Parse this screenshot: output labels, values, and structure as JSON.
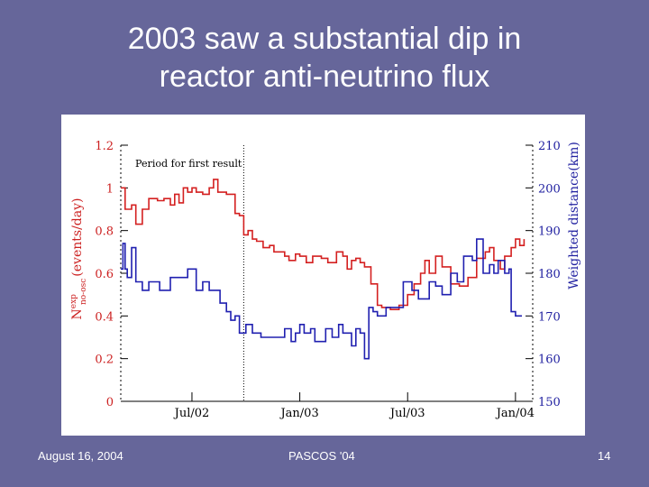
{
  "slide": {
    "title_line1": "2003 saw a substantial dip in",
    "title_line2": "reactor anti-neutrino flux",
    "footer_left": "August 16, 2004",
    "footer_center": "PASCOS '04",
    "footer_right": "14"
  },
  "colors": {
    "background": "#66669a",
    "red_series": "#d42020",
    "blue_series": "#2020b0"
  },
  "chart_data": {
    "type": "line",
    "title": "",
    "annotation": "Period for first result",
    "ylabel_left": "N exp no-osc (events/day)",
    "ylabel_left_parts": {
      "main": "N",
      "sup": "exp",
      "sub": "no-osc",
      "unit": "(events/day)"
    },
    "ylabel_right": "Weighted distance(km)",
    "xlabel": "",
    "xlim": [
      2002.17,
      2004.08
    ],
    "ylim_left": [
      0,
      1.2
    ],
    "ylim_right": [
      150,
      210
    ],
    "x_ticks": [
      {
        "x": 2002.5,
        "label": "Jul/02"
      },
      {
        "x": 2003.0,
        "label": "Jan/03"
      },
      {
        "x": 2003.5,
        "label": "Jul/03"
      },
      {
        "x": 2004.0,
        "label": "Jan/04"
      }
    ],
    "y_ticks_left": [
      "0",
      "0.2",
      "0.4",
      "0.6",
      "0.8",
      "1",
      "1.2"
    ],
    "y_tick_values_left": [
      0,
      0.2,
      0.4,
      0.6,
      0.8,
      1.0,
      1.2
    ],
    "y_ticks_right": [
      "150",
      "160",
      "170",
      "180",
      "190",
      "200",
      "210"
    ],
    "y_tick_values_right": [
      150,
      160,
      170,
      180,
      190,
      200,
      210
    ],
    "vertical_marker_x": 2002.74,
    "series": [
      {
        "axis": "left",
        "color": "#d42020",
        "x": [
          2002.17,
          2002.19,
          2002.22,
          2002.24,
          2002.27,
          2002.3,
          2002.34,
          2002.37,
          2002.4,
          2002.42,
          2002.44,
          2002.46,
          2002.48,
          2002.5,
          2002.52,
          2002.55,
          2002.58,
          2002.6,
          2002.62,
          2002.66,
          2002.7,
          2002.72,
          2002.74,
          2002.76,
          2002.78,
          2002.8,
          2002.83,
          2002.86,
          2002.88,
          2002.9,
          2002.93,
          2002.95,
          2002.98,
          2003.0,
          2003.03,
          2003.06,
          2003.1,
          2003.13,
          2003.17,
          2003.2,
          2003.22,
          2003.24,
          2003.26,
          2003.28,
          2003.3,
          2003.33,
          2003.36,
          2003.38,
          2003.42,
          2003.46,
          2003.5,
          2003.53,
          2003.56,
          2003.58,
          2003.6,
          2003.63,
          2003.66,
          2003.7,
          2003.74,
          2003.78,
          2003.82,
          2003.86,
          2003.88,
          2003.9,
          2003.93,
          2003.95,
          2003.98,
          2004.0,
          2004.02,
          2004.04
        ],
        "y": [
          1.0,
          0.9,
          0.92,
          0.83,
          0.9,
          0.95,
          0.94,
          0.95,
          0.92,
          0.97,
          0.93,
          1.0,
          0.98,
          1.0,
          0.98,
          0.97,
          1.0,
          1.04,
          0.98,
          0.97,
          0.88,
          0.87,
          0.78,
          0.8,
          0.76,
          0.75,
          0.72,
          0.73,
          0.7,
          0.7,
          0.68,
          0.66,
          0.69,
          0.68,
          0.65,
          0.68,
          0.67,
          0.65,
          0.7,
          0.68,
          0.62,
          0.66,
          0.67,
          0.65,
          0.63,
          0.55,
          0.45,
          0.44,
          0.43,
          0.45,
          0.5,
          0.55,
          0.6,
          0.66,
          0.6,
          0.68,
          0.63,
          0.55,
          0.54,
          0.58,
          0.67,
          0.7,
          0.72,
          0.66,
          0.62,
          0.68,
          0.72,
          0.76,
          0.73,
          0.76
        ]
      },
      {
        "axis": "right",
        "color": "#2020b0",
        "x": [
          2002.17,
          2002.18,
          2002.19,
          2002.2,
          2002.22,
          2002.24,
          2002.27,
          2002.3,
          2002.35,
          2002.4,
          2002.45,
          2002.48,
          2002.52,
          2002.55,
          2002.58,
          2002.6,
          2002.63,
          2002.66,
          2002.68,
          2002.7,
          2002.72,
          2002.75,
          2002.78,
          2002.82,
          2002.86,
          2002.9,
          2002.93,
          2002.96,
          2002.98,
          2003.0,
          2003.02,
          2003.05,
          2003.07,
          2003.1,
          2003.12,
          2003.15,
          2003.18,
          2003.2,
          2003.22,
          2003.24,
          2003.26,
          2003.28,
          2003.3,
          2003.32,
          2003.34,
          2003.36,
          2003.4,
          2003.44,
          2003.48,
          2003.52,
          2003.55,
          2003.6,
          2003.63,
          2003.66,
          2003.7,
          2003.73,
          2003.76,
          2003.8,
          2003.82,
          2003.85,
          2003.88,
          2003.9,
          2003.92,
          2003.95,
          2003.97,
          2003.98,
          2004.0,
          2004.03
        ],
        "y": [
          181,
          187,
          181,
          179,
          186,
          178,
          176,
          178,
          176,
          179,
          179,
          181,
          176,
          178,
          176,
          176,
          173,
          171,
          169,
          170,
          166,
          168,
          166,
          165,
          165,
          165,
          167,
          164,
          166,
          168,
          166,
          167,
          164,
          164,
          167,
          165,
          168,
          166,
          166,
          163,
          167,
          166,
          160,
          172,
          171,
          170,
          172,
          172,
          178,
          176,
          174,
          178,
          177,
          175,
          180,
          178,
          184,
          183,
          188,
          180,
          182,
          180,
          183,
          180,
          181,
          171,
          170,
          170
        ]
      }
    ]
  }
}
